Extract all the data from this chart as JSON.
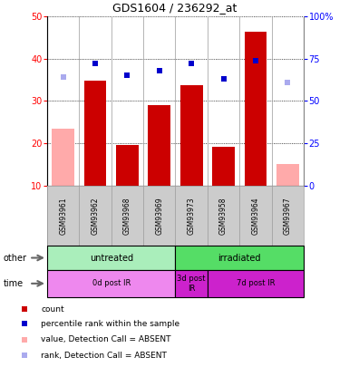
{
  "title": "GDS1604 / 236292_at",
  "samples": [
    "GSM93961",
    "GSM93962",
    "GSM93968",
    "GSM93969",
    "GSM93973",
    "GSM93958",
    "GSM93964",
    "GSM93967"
  ],
  "bar_values": [
    23.5,
    34.8,
    19.5,
    29.0,
    33.8,
    19.2,
    46.5,
    15.0
  ],
  "bar_absent": [
    true,
    false,
    false,
    false,
    false,
    false,
    false,
    true
  ],
  "rank_values": [
    64,
    72,
    65,
    68,
    72,
    63,
    74,
    61
  ],
  "rank_absent": [
    true,
    false,
    false,
    false,
    false,
    false,
    false,
    true
  ],
  "ylim_left": [
    10,
    50
  ],
  "ylim_right": [
    0,
    100
  ],
  "yticks_left": [
    10,
    20,
    30,
    40,
    50
  ],
  "yticks_right": [
    0,
    25,
    50,
    75,
    100
  ],
  "ytick_right_labels": [
    "0",
    "25",
    "50",
    "75",
    "100%"
  ],
  "bar_color_present": "#cc0000",
  "bar_color_absent": "#ffaaaa",
  "rank_color_present": "#0000cc",
  "rank_color_absent": "#aaaaee",
  "groups": [
    {
      "label": "untreated",
      "start": 0,
      "end": 4,
      "color": "#aaeebb"
    },
    {
      "label": "irradiated",
      "start": 4,
      "end": 8,
      "color": "#55dd66"
    }
  ],
  "times": [
    {
      "label": "0d post IR",
      "start": 0,
      "end": 4,
      "color": "#ee88ee"
    },
    {
      "label": "3d post\nIR",
      "start": 4,
      "end": 5,
      "color": "#cc22cc"
    },
    {
      "label": "7d post IR",
      "start": 5,
      "end": 8,
      "color": "#cc22cc"
    }
  ],
  "legend_items": [
    {
      "label": "count",
      "color": "#cc0000"
    },
    {
      "label": "percentile rank within the sample",
      "color": "#0000cc"
    },
    {
      "label": "value, Detection Call = ABSENT",
      "color": "#ffaaaa"
    },
    {
      "label": "rank, Detection Call = ABSENT",
      "color": "#aaaaee"
    }
  ]
}
